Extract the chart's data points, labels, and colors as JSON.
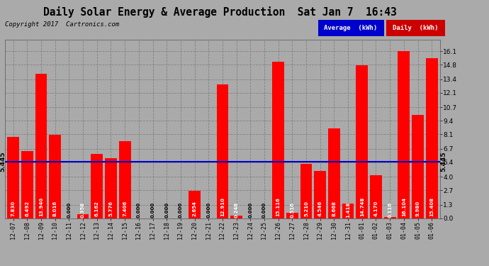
{
  "title": "Daily Solar Energy & Average Production  Sat Jan 7  16:43",
  "copyright": "Copyright 2017  Cartronics.com",
  "categories": [
    "12-07",
    "12-08",
    "12-09",
    "12-10",
    "12-11",
    "12-12",
    "12-13",
    "12-14",
    "12-15",
    "12-16",
    "12-17",
    "12-18",
    "12-19",
    "12-20",
    "12-21",
    "12-22",
    "12-23",
    "12-24",
    "12-25",
    "12-26",
    "12-27",
    "12-28",
    "12-29",
    "12-30",
    "12-31",
    "01-01",
    "01-02",
    "01-03",
    "01-04",
    "01-05",
    "01-06"
  ],
  "values": [
    7.83,
    6.492,
    13.94,
    8.016,
    0.0,
    0.358,
    6.162,
    5.776,
    7.406,
    0.0,
    0.0,
    0.0,
    0.0,
    2.654,
    0.0,
    12.91,
    0.246,
    0.0,
    0.0,
    15.116,
    0.516,
    5.21,
    4.546,
    8.668,
    1.418,
    14.748,
    4.17,
    0.116,
    16.104,
    9.98,
    15.408
  ],
  "average": 5.445,
  "bar_color": "#ff0000",
  "avg_line_color": "#0000cc",
  "background_color": "#aaaaaa",
  "plot_background_color": "#aaaaaa",
  "yticks": [
    0.0,
    1.3,
    2.7,
    4.0,
    5.4,
    6.7,
    8.1,
    9.4,
    10.7,
    12.1,
    13.4,
    14.8,
    16.1
  ],
  "ylim": [
    0.0,
    17.2
  ],
  "legend_avg_color": "#0000cc",
  "legend_daily_color": "#cc0000",
  "legend_avg_text": "Average  (kWh)",
  "legend_daily_text": "Daily  (kWh)",
  "avg_label": "5.445"
}
